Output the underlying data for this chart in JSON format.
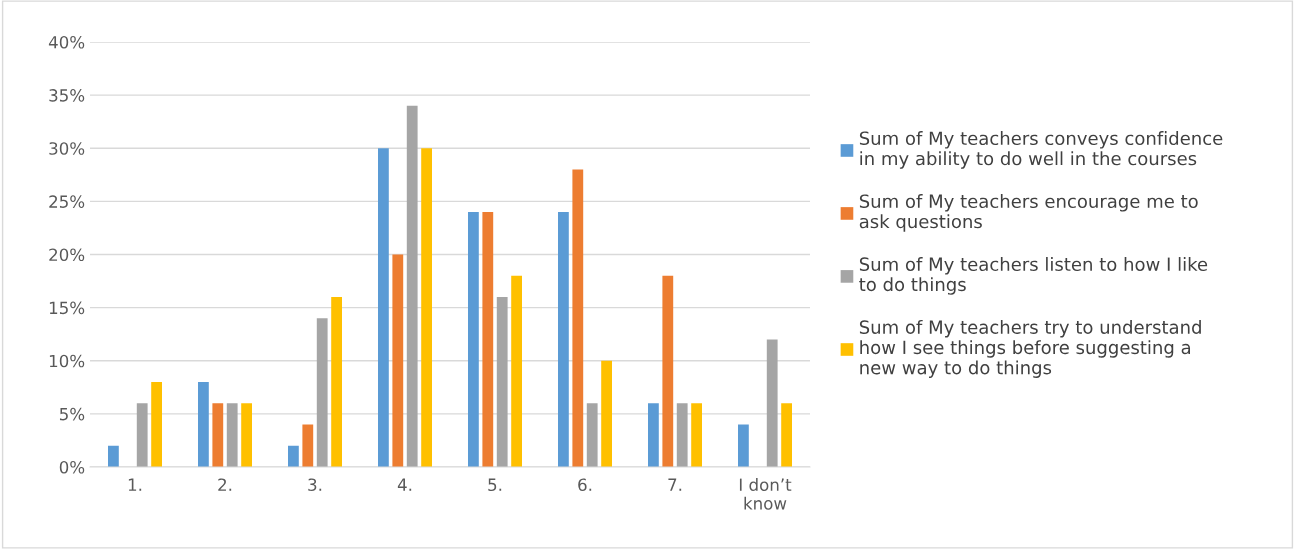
{
  "chart_data": {
    "type": "bar",
    "categories": [
      "1.",
      "2.",
      "3.",
      "4.",
      "5.",
      "6.",
      "7.",
      "I don’t\nknow"
    ],
    "series": [
      {
        "name": "Sum of My teachers conveys confidence\nin my ability to do well in the courses",
        "color": "#5b9bd5",
        "values": [
          2,
          8,
          2,
          30,
          24,
          24,
          6,
          4
        ]
      },
      {
        "name": "Sum of My teachers encourage me to\nask questions",
        "color": "#ed7d31",
        "values": [
          0,
          6,
          4,
          20,
          24,
          28,
          18,
          0
        ]
      },
      {
        "name": "Sum of My teachers listen to how I like\nto do things",
        "color": "#a5a5a5",
        "values": [
          6,
          6,
          14,
          34,
          16,
          6,
          6,
          12
        ]
      },
      {
        "name": "Sum of My teachers try to understand\nhow I see things before suggesting a\nnew way to do things",
        "color": "#ffc000",
        "values": [
          8,
          6,
          16,
          30,
          18,
          10,
          6,
          6
        ]
      }
    ],
    "ylim": [
      0,
      40
    ],
    "yticks": [
      {
        "value": 0,
        "label": "0%"
      },
      {
        "value": 5,
        "label": "5%"
      },
      {
        "value": 10,
        "label": "10%"
      },
      {
        "value": 15,
        "label": "15%"
      },
      {
        "value": 20,
        "label": "20%"
      },
      {
        "value": 25,
        "label": "25%"
      },
      {
        "value": 30,
        "label": "30%"
      },
      {
        "value": 35,
        "label": "35%"
      },
      {
        "value": 40,
        "label": "40%"
      }
    ],
    "grid": "y",
    "legend": "right"
  }
}
